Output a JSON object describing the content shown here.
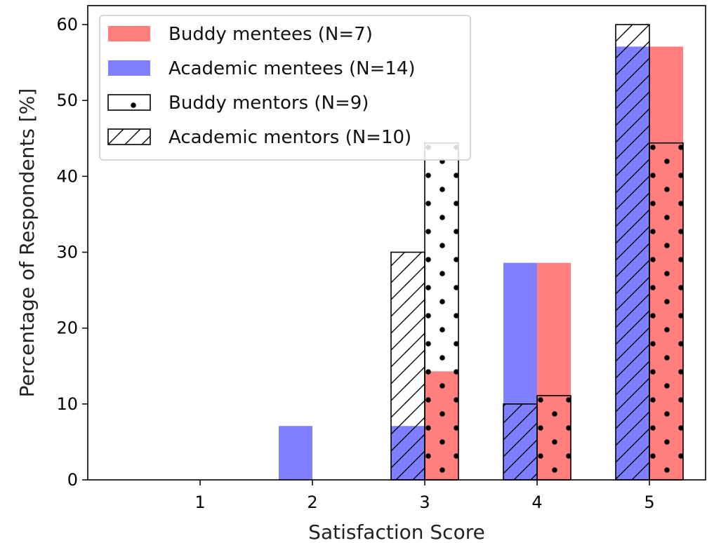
{
  "chart_data": {
    "type": "bar",
    "xlabel": "Satisfaction Score",
    "ylabel": "Percentage of Respondents [%]",
    "x": [
      1,
      2,
      3,
      4,
      5
    ],
    "ylim": [
      0,
      62.5
    ],
    "xlim": [
      0,
      5.5
    ],
    "yticks": [
      0,
      10,
      20,
      30,
      40,
      50,
      60
    ],
    "grid": false,
    "legend_position": "top-left",
    "series": [
      {
        "name": "Buddy mentees (N=7)",
        "group": "buddy",
        "style": "fill",
        "color": "#ff7f7f",
        "values": [
          0,
          0,
          14.3,
          28.6,
          57.1
        ]
      },
      {
        "name": "Academic mentees (N=14)",
        "group": "academic",
        "style": "fill",
        "color": "#7f7fff",
        "values": [
          0,
          7.1,
          7.1,
          28.6,
          57.1
        ]
      },
      {
        "name": "Buddy mentors (N=9)",
        "group": "buddy",
        "style": "dots",
        "color": "#000000",
        "values": [
          0,
          0,
          44.4,
          11.1,
          44.4
        ]
      },
      {
        "name": "Academic mentors (N=10)",
        "group": "academic",
        "style": "hatch",
        "color": "#000000",
        "values": [
          0,
          0,
          30,
          10,
          60
        ]
      }
    ]
  }
}
